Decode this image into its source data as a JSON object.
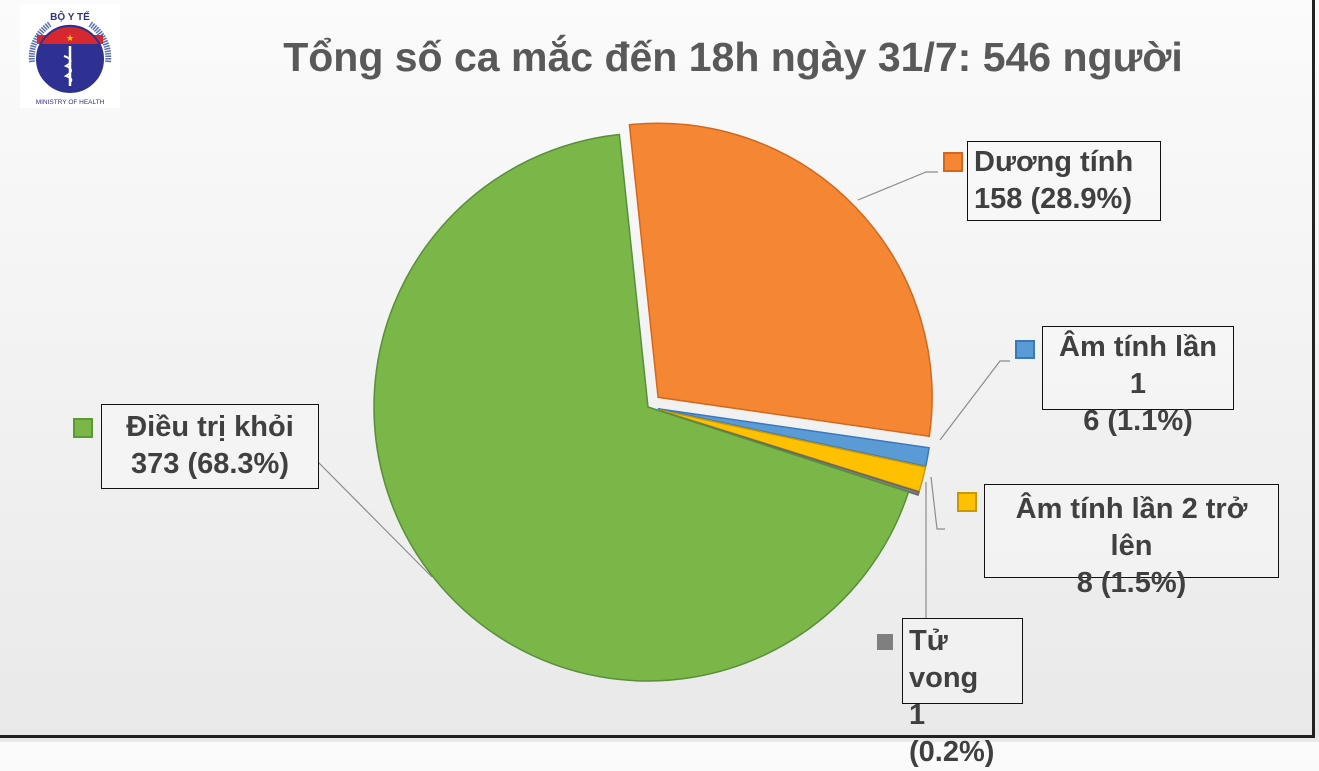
{
  "title": "Tổng số ca mắc đến 18h ngày 31/7: 546 người",
  "logo": {
    "top_text": "BỘ Y TẾ",
    "bottom_text": "MINISTRY OF HEALTH"
  },
  "chart_data": {
    "type": "pie",
    "title": "Tổng số ca mắc đến 18h ngày 31/7: 546 người",
    "total": 546,
    "start_angle_deg": -6,
    "direction": "clockwise",
    "slices": [
      {
        "name": "Dương tính",
        "value": 158,
        "label": "158 (28.9%)",
        "color": "#F58634",
        "exploded": true
      },
      {
        "name": "Âm tính lần 1",
        "value": 6,
        "label": "6 (1.1%)",
        "color": "#5B9BD5",
        "exploded": true
      },
      {
        "name": "Âm tính lần 2 trở lên",
        "value": 8,
        "label": "8 (1.5%)",
        "color": "#FFC000",
        "exploded": true
      },
      {
        "name": "Tử vong",
        "value": 1,
        "label": "1 (0.2%)",
        "color": "#7F7F7F",
        "exploded": true
      },
      {
        "name": "Điều trị khỏi",
        "value": 373,
        "label": "373 (68.3%)",
        "color": "#7AB648",
        "exploded": false
      }
    ]
  }
}
